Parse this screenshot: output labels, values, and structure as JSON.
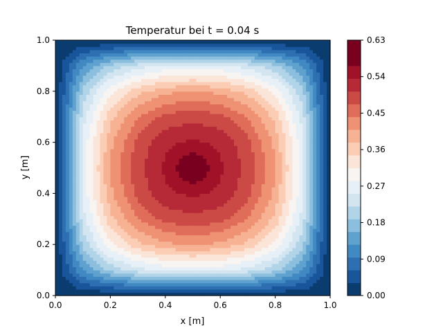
{
  "chart_data": {
    "type": "heatmap",
    "title": "Temperatur bei t = 0.04 s",
    "xlabel": "x [m]",
    "ylabel": "y [m]",
    "xlim": [
      0,
      1
    ],
    "ylim": [
      0,
      1
    ],
    "x_ticks": [
      "0.0",
      "0.2",
      "0.4",
      "0.6",
      "0.8",
      "1.0"
    ],
    "y_ticks": [
      "0.0",
      "0.2",
      "0.4",
      "0.6",
      "0.8",
      "1.0"
    ],
    "grid_x": [
      0.0,
      0.1,
      0.2,
      0.3,
      0.4,
      0.5,
      0.6,
      0.7,
      0.8,
      0.9,
      1.0
    ],
    "grid_y": [
      0.0,
      0.1,
      0.2,
      0.3,
      0.4,
      0.5,
      0.6,
      0.7,
      0.8,
      0.9,
      1.0
    ],
    "values": [
      [
        0.0,
        0.0,
        0.0,
        0.0,
        0.0,
        0.0,
        0.0,
        0.0,
        0.0,
        0.0,
        0.0
      ],
      [
        0.0,
        0.127,
        0.197,
        0.237,
        0.259,
        0.265,
        0.259,
        0.237,
        0.197,
        0.127,
        0.0
      ],
      [
        0.0,
        0.197,
        0.305,
        0.367,
        0.401,
        0.412,
        0.401,
        0.367,
        0.305,
        0.197,
        0.0
      ],
      [
        0.0,
        0.237,
        0.367,
        0.442,
        0.483,
        0.495,
        0.483,
        0.442,
        0.367,
        0.237,
        0.0
      ],
      [
        0.0,
        0.259,
        0.401,
        0.483,
        0.527,
        0.541,
        0.527,
        0.483,
        0.401,
        0.259,
        0.0
      ],
      [
        0.0,
        0.265,
        0.412,
        0.495,
        0.541,
        0.615,
        0.541,
        0.495,
        0.412,
        0.265,
        0.0
      ],
      [
        0.0,
        0.259,
        0.401,
        0.483,
        0.527,
        0.541,
        0.527,
        0.483,
        0.401,
        0.259,
        0.0
      ],
      [
        0.0,
        0.237,
        0.367,
        0.442,
        0.483,
        0.495,
        0.483,
        0.442,
        0.367,
        0.237,
        0.0
      ],
      [
        0.0,
        0.197,
        0.305,
        0.367,
        0.401,
        0.412,
        0.401,
        0.367,
        0.305,
        0.197,
        0.0
      ],
      [
        0.0,
        0.127,
        0.197,
        0.237,
        0.259,
        0.265,
        0.259,
        0.237,
        0.197,
        0.127,
        0.0
      ],
      [
        0.0,
        0.0,
        0.0,
        0.0,
        0.0,
        0.0,
        0.0,
        0.0,
        0.0,
        0.0,
        0.0
      ]
    ],
    "colorbar": {
      "levels": [
        0.0,
        0.0315,
        0.063,
        0.0945,
        0.126,
        0.1575,
        0.189,
        0.2205,
        0.252,
        0.2835,
        0.315,
        0.3465,
        0.378,
        0.4095,
        0.441,
        0.4725,
        0.504,
        0.5355,
        0.567,
        0.5985,
        0.63
      ],
      "tick_labels": [
        "0.00",
        "0.09",
        "0.18",
        "0.27",
        "0.36",
        "0.45",
        "0.54",
        "0.63"
      ],
      "tick_values": [
        0.0,
        0.09,
        0.18,
        0.27,
        0.36,
        0.45,
        0.54,
        0.63
      ],
      "colors": [
        "#0b3c6f",
        "#19559a",
        "#2e6fb2",
        "#4089c2",
        "#5fa1cf",
        "#8cbedd",
        "#b1d4e8",
        "#d2e5f0",
        "#e7f0f6",
        "#f8f4f2",
        "#fbe4d8",
        "#fbcdb4",
        "#f7b294",
        "#ef9274",
        "#e06d59",
        "#cc4a46",
        "#b52a36",
        "#a11228",
        "#7a0020",
        "#7a0020"
      ]
    }
  }
}
